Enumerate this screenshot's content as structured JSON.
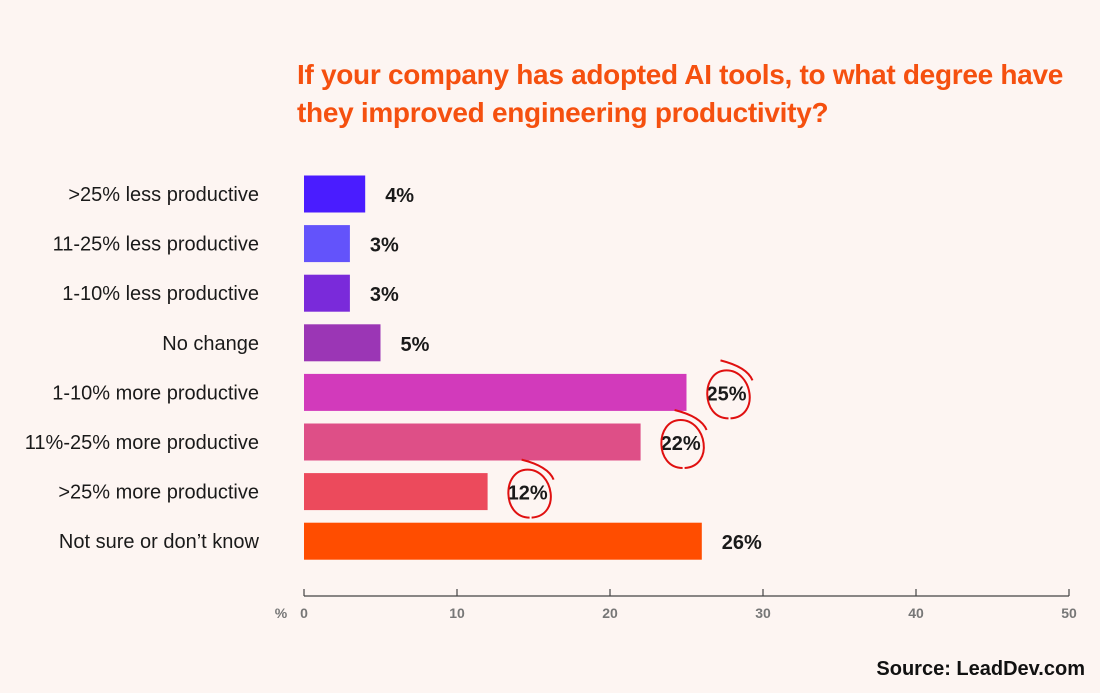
{
  "chart_data": {
    "type": "bar",
    "orientation": "horizontal",
    "title": "If your company has adopted AI tools, to what degree have they improved engineering productivity?",
    "categories": [
      ">25% less productive",
      "11-25% less productive",
      "1-10% less productive",
      "No change",
      "1-10% more productive",
      "11%-25% more productive",
      ">25% more productive",
      "Not sure or don’t know"
    ],
    "values": [
      4,
      3,
      3,
      5,
      25,
      22,
      12,
      26
    ],
    "value_labels": [
      "4%",
      "3%",
      "3%",
      "5%",
      "25%",
      "22%",
      "12%",
      "26%"
    ],
    "colors": [
      "#4a1cff",
      "#6353fb",
      "#7a2ada",
      "#9b36b5",
      "#d23abb",
      "#de4f87",
      "#ec4a5c",
      "#ff4d00"
    ],
    "circled": [
      false,
      false,
      false,
      false,
      true,
      true,
      true,
      false
    ],
    "xlabel": "%",
    "xlim": [
      0,
      50
    ],
    "xticks": [
      0,
      10,
      20,
      30,
      40,
      50
    ],
    "xtick_labels": [
      "0",
      "10",
      "20",
      "30",
      "40",
      "50"
    ],
    "grid": false,
    "legend": "none"
  },
  "source": "Source: LeadDev.com"
}
